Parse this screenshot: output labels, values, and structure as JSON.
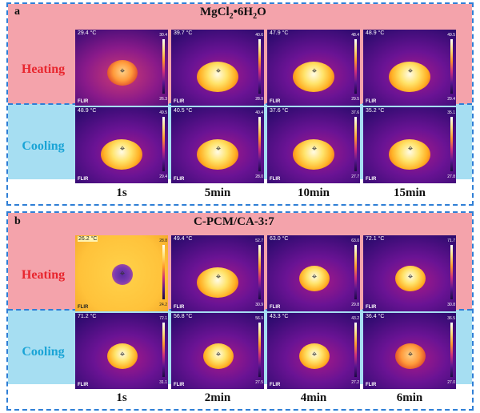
{
  "panels": [
    {
      "letter": "a",
      "title_main": "MgCl",
      "title_sub": "2",
      "title_mid": "•6H",
      "title_sub2": "2",
      "title_end": "O",
      "heating_label": "Heating",
      "cooling_label": "Cooling",
      "times": [
        "1s",
        "5min",
        "10min",
        "15min"
      ],
      "heating": [
        {
          "temp": "29.4 °C",
          "max": "30.4",
          "min": "26.3"
        },
        {
          "temp": "39.7 °C",
          "max": "40.6",
          "min": "28.9"
        },
        {
          "temp": "47.9 °C",
          "max": "48.4",
          "min": "29.5"
        },
        {
          "temp": "48.9 °C",
          "max": "49.5",
          "min": "29.4"
        }
      ],
      "cooling": [
        {
          "temp": "48.9 °C",
          "max": "49.5",
          "min": "29.4"
        },
        {
          "temp": "40.5 °C",
          "max": "40.4",
          "min": "28.0"
        },
        {
          "temp": "37.6 °C",
          "max": "37.6",
          "min": "27.7"
        },
        {
          "temp": "35.2 °C",
          "max": "35.1",
          "min": "27.8"
        }
      ]
    },
    {
      "letter": "b",
      "title": "C-PCM/CA-3:7",
      "heating_label": "Heating",
      "cooling_label": "Cooling",
      "times": [
        "1s",
        "2min",
        "4min",
        "6min"
      ],
      "heating": [
        {
          "temp": "26.2 °C",
          "max": "28.8",
          "min": "24.2"
        },
        {
          "temp": "49.4 °C",
          "max": "52.7",
          "min": "30.9"
        },
        {
          "temp": "63.0 °C",
          "max": "63.0",
          "min": "29.8"
        },
        {
          "temp": "72.1 °C",
          "max": "71.7",
          "min": "30.8"
        }
      ],
      "cooling": [
        {
          "temp": "71.2 °C",
          "max": "72.1",
          "min": "31.1"
        },
        {
          "temp": "56.8 °C",
          "max": "56.9",
          "min": "27.5"
        },
        {
          "temp": "43.3 °C",
          "max": "43.2",
          "min": "27.2"
        },
        {
          "temp": "36.4 °C",
          "max": "36.5",
          "min": "27.0"
        }
      ]
    }
  ],
  "flir_logo": "FLIR",
  "crosshair_icon": "crosshair-icon",
  "colors": {
    "heating_band": "#f4a3ab",
    "cooling_band": "#a6def2",
    "heating_text": "#e8262e",
    "cooling_text": "#1aa4d6",
    "dashed_border": "#2f7fd6"
  }
}
